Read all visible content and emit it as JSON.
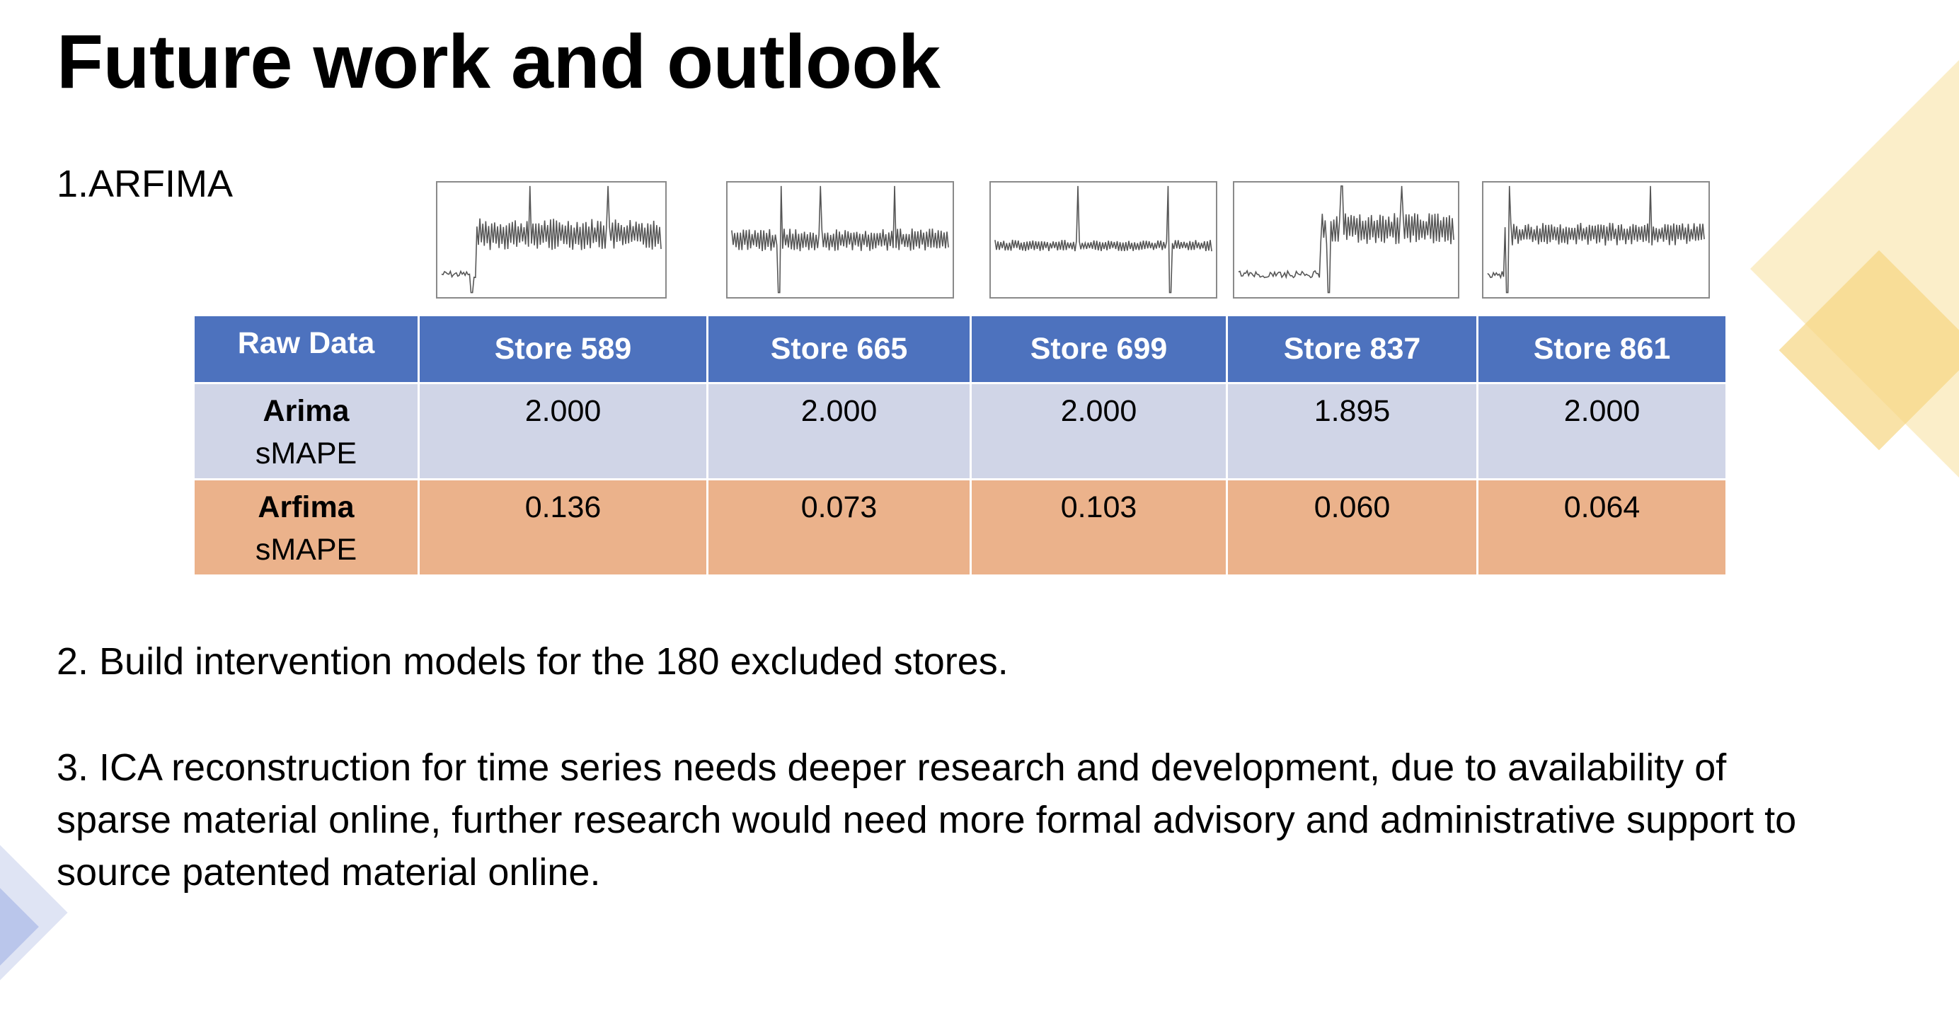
{
  "slide": {
    "title": "Future work and outlook"
  },
  "section1": {
    "heading": "1.ARFIMA",
    "thumbnails": [
      {
        "name": "store-589"
      },
      {
        "name": "store-665"
      },
      {
        "name": "store-699"
      },
      {
        "name": "store-837"
      },
      {
        "name": "store-861"
      }
    ],
    "table": {
      "header": [
        "Raw Data",
        "Store 589",
        "Store 665",
        "Store 699",
        "Store 837",
        "Store 861"
      ],
      "rows": [
        {
          "label": "Arima",
          "sublabel": "sMAPE",
          "values": [
            "2.000",
            "2.000",
            "2.000",
            "1.895",
            "2.000"
          ]
        },
        {
          "label": "Arfima",
          "sublabel": "sMAPE",
          "values": [
            "0.136",
            "0.073",
            "0.103",
            "0.060",
            "0.064"
          ]
        }
      ]
    }
  },
  "section2": {
    "text": "2. Build intervention models for the 180 excluded stores."
  },
  "section3": {
    "lines": [
      "3. ICA reconstruction for time series needs deeper research and development, due to availability of",
      "sparse material online, further research would need more formal advisory and administrative support to",
      "source patented material online."
    ]
  },
  "colors": {
    "header_blue": "#4d72be",
    "arima_row": "#d0d5e7",
    "arfima_row": "#ebb28b",
    "deco_yellow": "#f9e4b0",
    "deco_blue": "#c7d0ec"
  }
}
